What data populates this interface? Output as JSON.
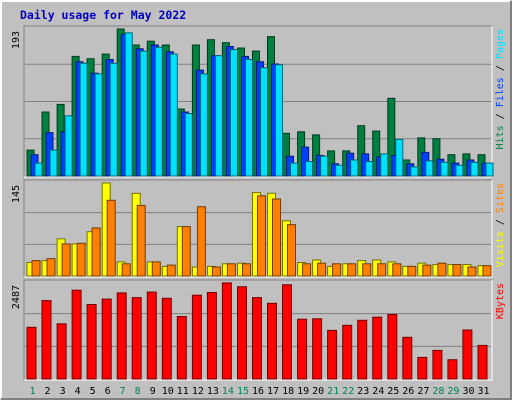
{
  "chart_data": {
    "title": "Daily usage for May 2022",
    "days": [
      "1",
      "2",
      "3",
      "4",
      "5",
      "6",
      "7",
      "8",
      "9",
      "10",
      "11",
      "12",
      "13",
      "14",
      "15",
      "16",
      "17",
      "18",
      "19",
      "20",
      "21",
      "22",
      "23",
      "24",
      "25",
      "26",
      "27",
      "28",
      "29",
      "30",
      "31"
    ],
    "weekend_days": [
      "1",
      "7",
      "8",
      "14",
      "15",
      "21",
      "22",
      "28",
      "29"
    ],
    "panels": [
      {
        "id": "hits",
        "type": "bar",
        "ymax": 193,
        "ymax_label": "193",
        "side_label": [
          {
            "text": "Hits",
            "color": "#008040"
          },
          {
            "text": "Files",
            "color": "#0040ff"
          },
          {
            "text": "Pages",
            "color": "#00e0ff"
          }
        ],
        "series": [
          {
            "name": "Hits",
            "color": "#008040",
            "values": [
              34,
              84,
              94,
              157,
              154,
              160,
              193,
              172,
              177,
              172,
              88,
              172,
              179,
              175,
              168,
              164,
              183,
              56,
              58,
              54,
              33,
              33,
              66,
              59,
              102,
              21,
              50,
              49,
              28,
              29,
              28
            ]
          },
          {
            "name": "Files",
            "color": "#0040ff",
            "values": [
              28,
              57,
              58,
              150,
              135,
              153,
              186,
              167,
              172,
              163,
              84,
              139,
              158,
              170,
              157,
              150,
              147,
              26,
              38,
              27,
              16,
              30,
              29,
              25,
              27,
              16,
              31,
              22,
              17,
              21,
              17
            ]
          },
          {
            "name": "Pages",
            "color": "#00e0ff",
            "values": [
              17,
              34,
              79,
              148,
              134,
              148,
              188,
              164,
              169,
              160,
              82,
              134,
              158,
              166,
              153,
              142,
              146,
              17,
              19,
              26,
              14,
              21,
              19,
              29,
              48,
              12,
              20,
              18,
              14,
              18,
              17
            ]
          }
        ]
      },
      {
        "id": "visits",
        "type": "bar",
        "ymax": 145,
        "ymax_label": "145",
        "side_label": [
          {
            "text": "Visits",
            "color": "#ffff00"
          },
          {
            "text": "Sites",
            "color": "#ff8000"
          }
        ],
        "series": [
          {
            "name": "Visits",
            "color": "#ffff00",
            "values": [
              21,
              24,
              58,
              50,
              69,
              145,
              22,
              129,
              22,
              15,
              77,
              14,
              15,
              19,
              20,
              130,
              129,
              86,
              21,
              25,
              15,
              19,
              24,
              25,
              22,
              15,
              20,
              18,
              18,
              18,
              16
            ]
          },
          {
            "name": "Sites",
            "color": "#ff8000",
            "values": [
              24,
              27,
              50,
              51,
              75,
              118,
              19,
              110,
              22,
              17,
              77,
              108,
              14,
              19,
              19,
              125,
              120,
              80,
              19,
              20,
              19,
              19,
              19,
              19,
              19,
              15,
              17,
              20,
              18,
              14,
              16
            ]
          }
        ]
      },
      {
        "id": "kbytes",
        "type": "bar",
        "ymax": 2487,
        "ymax_label": "2487",
        "side_label": [
          {
            "text": "KBytes",
            "color": "#ff0000"
          }
        ],
        "series": [
          {
            "name": "KBytes",
            "color": "#ff0000",
            "values": [
              1340,
              2030,
              1430,
              2300,
              1930,
              2070,
              2230,
              2110,
              2250,
              2090,
              1620,
              2170,
              2240,
              2490,
              2390,
              2110,
              1960,
              2440,
              1550,
              1560,
              1260,
              1390,
              1520,
              1600,
              1670,
              1080,
              560,
              740,
              500,
              1270,
              870
            ]
          }
        ]
      }
    ]
  }
}
